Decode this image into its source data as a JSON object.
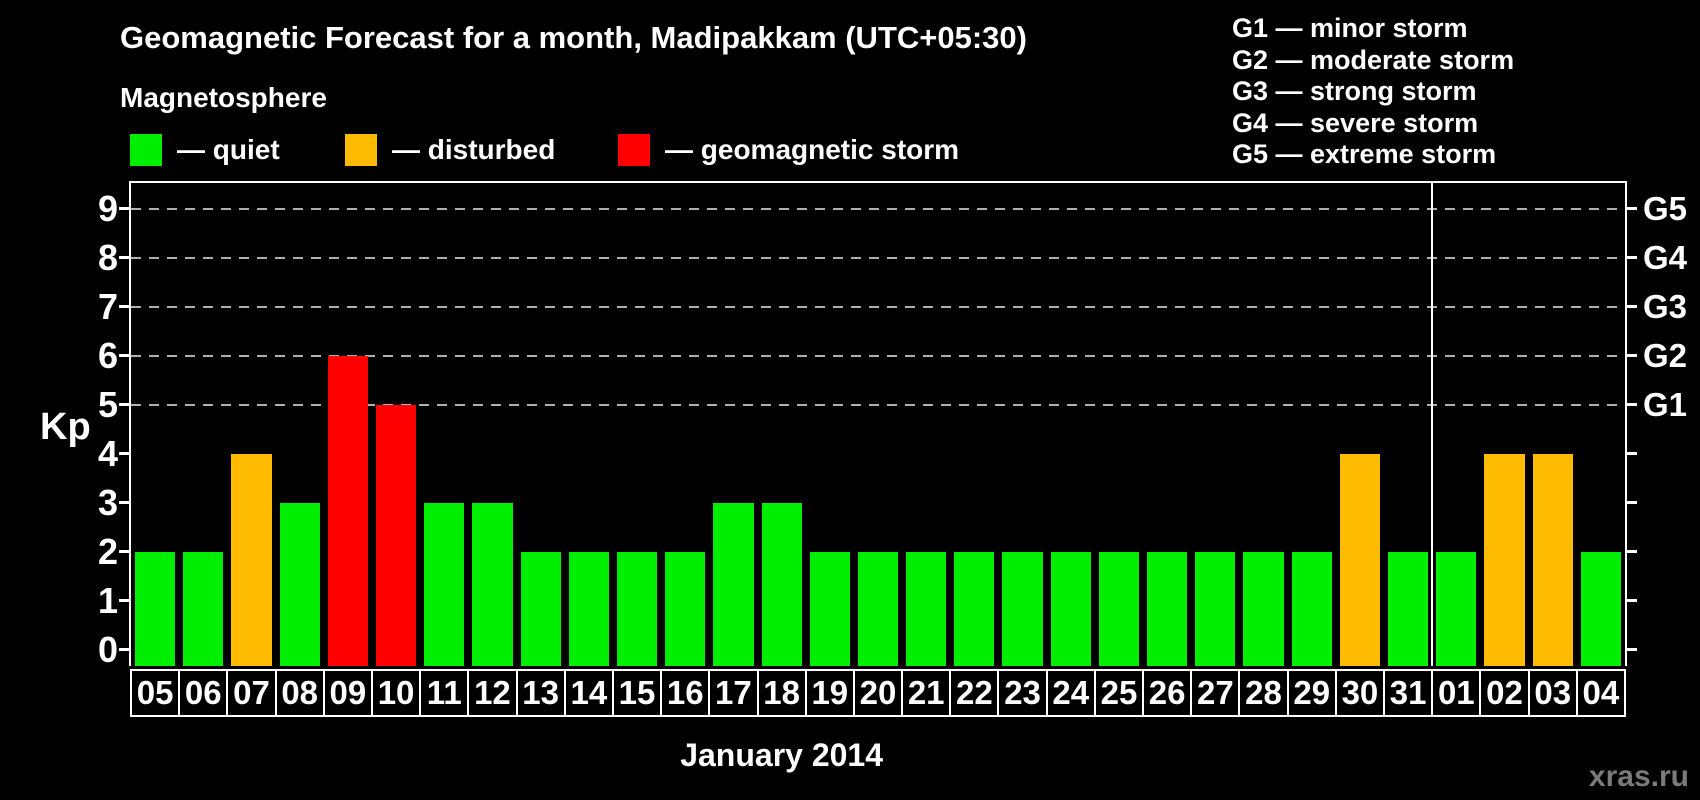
{
  "header": {
    "title": "Geomagnetic Forecast for a month, Madipakkam (UTC+05:30)",
    "section_label": "Magnetosphere"
  },
  "legend": {
    "items": [
      {
        "name": "quiet",
        "label": "— quiet",
        "color": "#00ee00"
      },
      {
        "name": "disturbed",
        "label": "— disturbed",
        "color": "#ffbb00"
      },
      {
        "name": "storm",
        "label": "— geomagnetic storm",
        "color": "#ff0000"
      }
    ]
  },
  "storm_scale_legend": {
    "lines": [
      "G1 — minor storm",
      "G2 — moderate storm",
      "G3 — strong storm",
      "G4 — severe storm",
      "G5 — extreme storm"
    ]
  },
  "chart_data": {
    "type": "bar",
    "title": "Geomagnetic Forecast for a month, Madipakkam (UTC+05:30)",
    "ylabel": "Kp",
    "xlabel": "January 2014",
    "categories": [
      "05",
      "06",
      "07",
      "08",
      "09",
      "10",
      "11",
      "12",
      "13",
      "14",
      "15",
      "16",
      "17",
      "18",
      "19",
      "20",
      "21",
      "22",
      "23",
      "24",
      "25",
      "26",
      "27",
      "28",
      "29",
      "30",
      "31",
      "01",
      "02",
      "03",
      "04"
    ],
    "values": [
      2,
      2,
      4,
      3,
      6,
      5,
      3,
      3,
      2,
      2,
      2,
      2,
      3,
      3,
      2,
      2,
      2,
      2,
      2,
      2,
      2,
      2,
      2,
      2,
      2,
      4,
      2,
      2,
      4,
      4,
      2
    ],
    "yticks": [
      0,
      1,
      2,
      3,
      4,
      5,
      6,
      7,
      8,
      9
    ],
    "ylim": [
      -0.33,
      9.53
    ],
    "grid_levels": [
      5,
      6,
      7,
      8,
      9
    ],
    "grid": "dashed horizontal lines at storm levels only",
    "legend_position": "top-left",
    "right_axis": [
      {
        "label": "G1",
        "kp": 5
      },
      {
        "label": "G2",
        "kp": 6
      },
      {
        "label": "G3",
        "kp": 7
      },
      {
        "label": "G4",
        "kp": 8
      },
      {
        "label": "G5",
        "kp": 9
      }
    ],
    "thresholds": {
      "disturbed_min": 4,
      "storm_min": 5
    },
    "month_boundary_after_index": 26,
    "colors": {
      "quiet": "#00ee00",
      "disturbed": "#ffbb00",
      "storm": "#ff0000",
      "grid": "#b0b0b0",
      "frame": "#ffffff",
      "text": "#ffffff",
      "watermark": "#7b7b7b"
    }
  },
  "footer": {
    "watermark": "xras.ru"
  }
}
